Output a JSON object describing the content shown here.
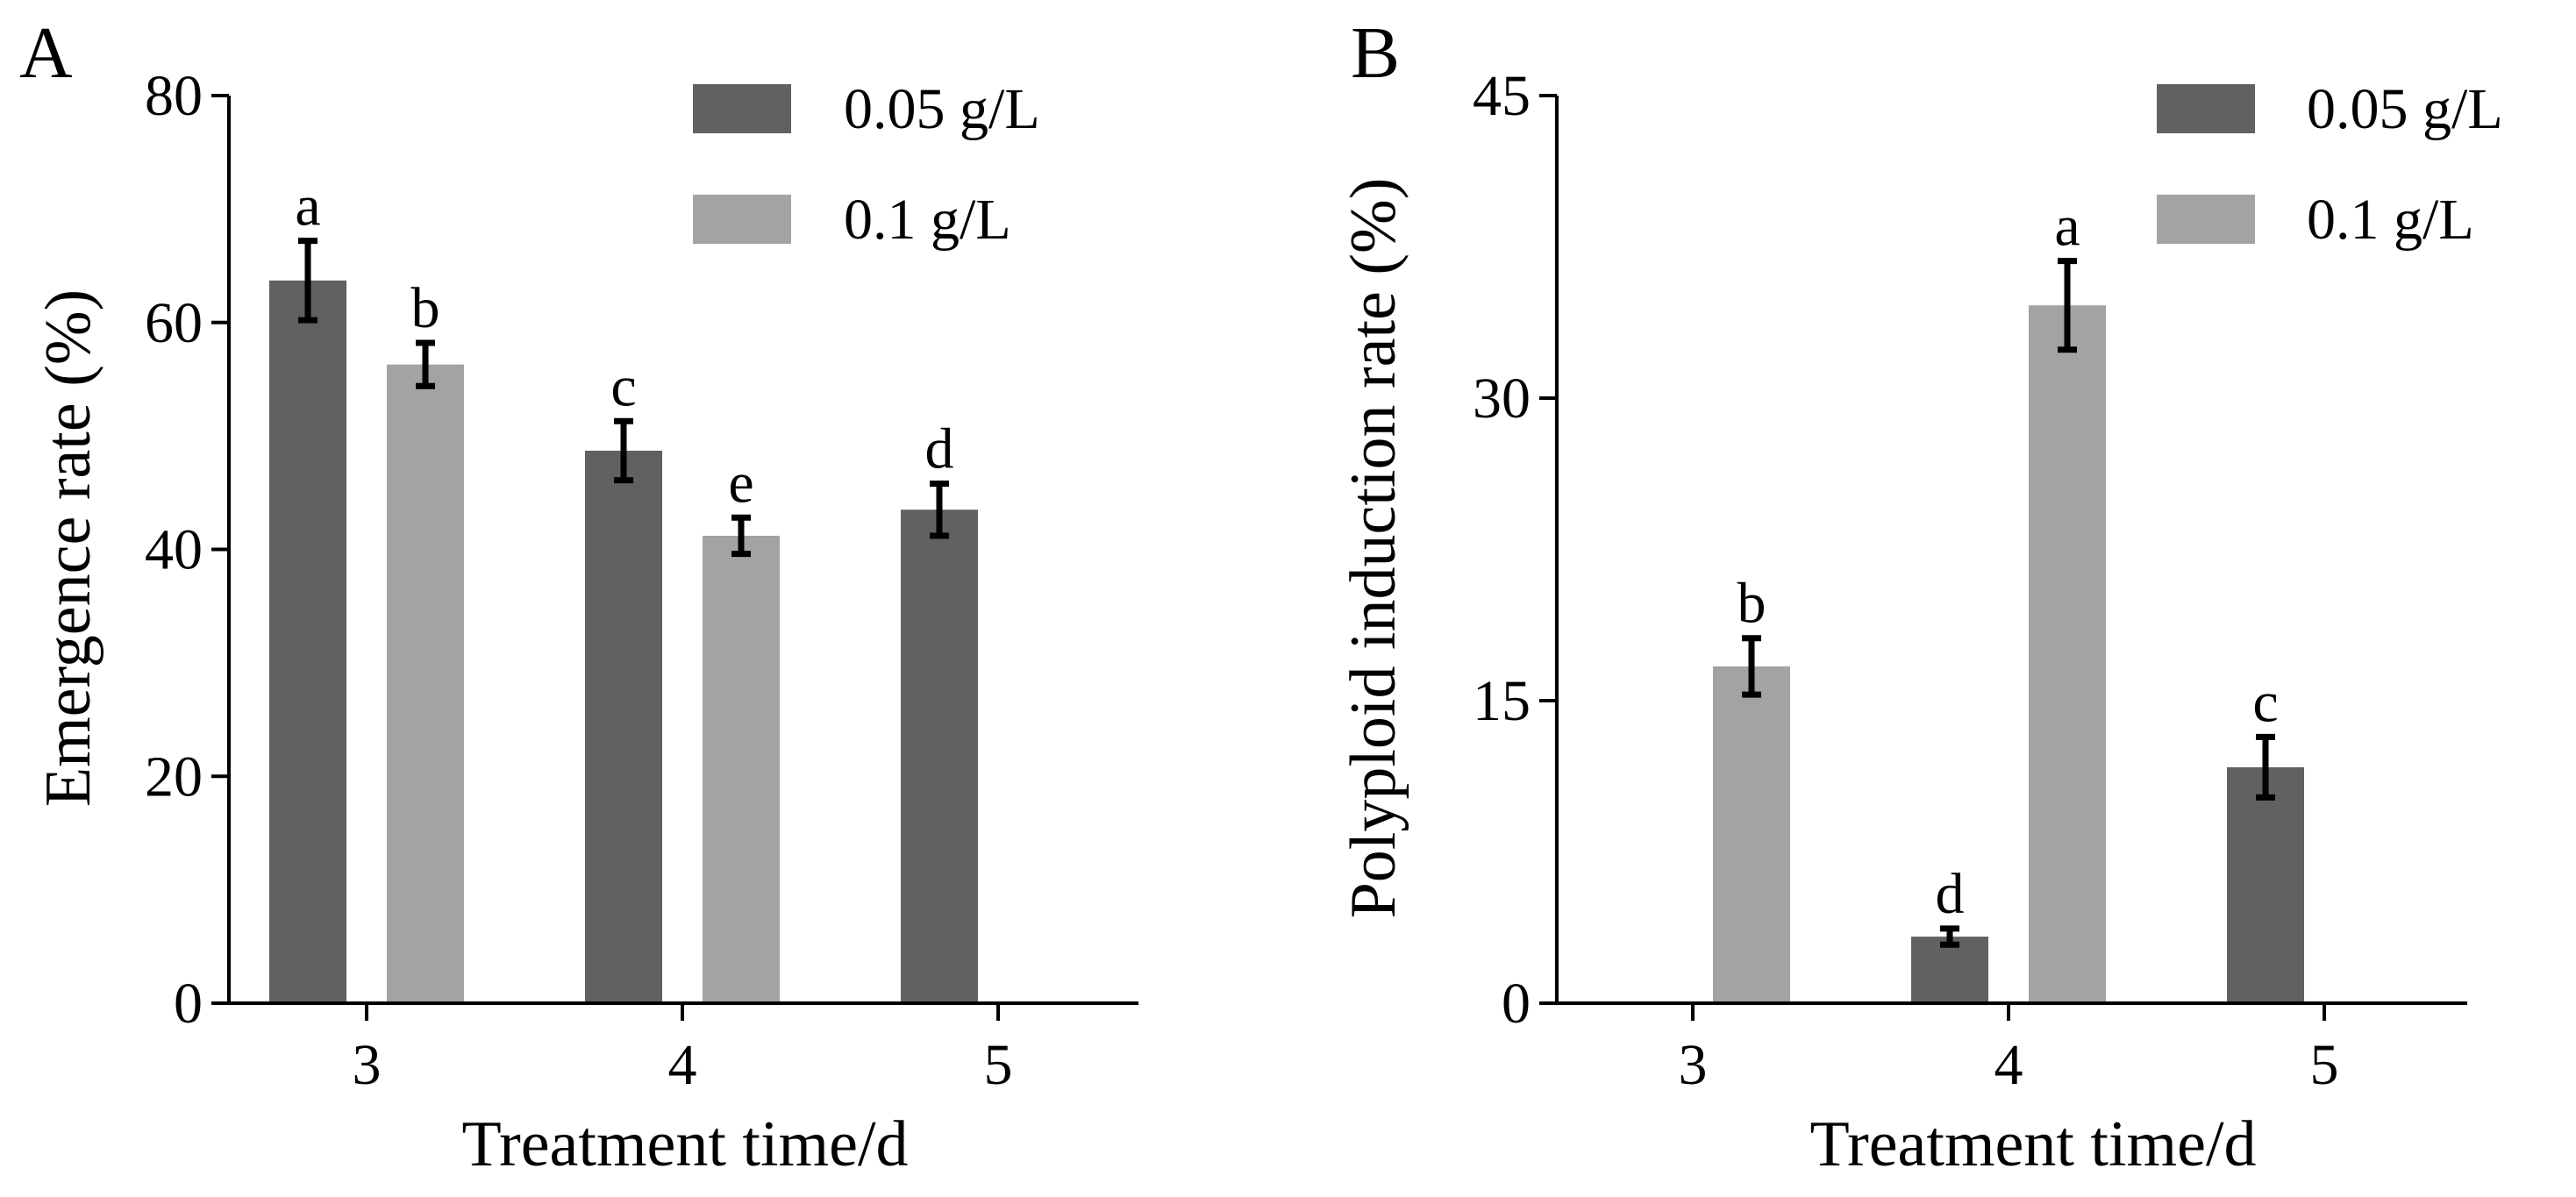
{
  "colors": {
    "dark": "#616161",
    "light": "#a3a3a6",
    "axis": "#000000"
  },
  "legend_entries": [
    {
      "label": "0.05 g/L",
      "color": "#616161"
    },
    {
      "label": "0.1 g/L",
      "color": "#a3a3a6"
    }
  ],
  "chart_data": [
    {
      "type": "bar",
      "panel": "A",
      "xlabel": "Treatment time/d",
      "ylabel": "Emergence rate (%)",
      "categories": [
        "3",
        "4",
        "5"
      ],
      "ylim": [
        0,
        80
      ],
      "yticks": [
        0,
        20,
        40,
        60,
        80
      ],
      "legend": "top-right",
      "grid": false,
      "series": [
        {
          "name": "0.05 g/L",
          "values": [
            63.7,
            48.7,
            43.5
          ],
          "errors": [
            3.5,
            2.6,
            2.3
          ],
          "labels": [
            "a",
            "c",
            "d"
          ]
        },
        {
          "name": "0.1 g/L",
          "values": [
            56.3,
            41.2,
            null
          ],
          "errors": [
            1.9,
            1.6,
            null
          ],
          "labels": [
            "b",
            "e",
            null
          ]
        }
      ]
    },
    {
      "type": "bar",
      "panel": "B",
      "xlabel": "Treatment time/d",
      "ylabel": "Polyploid induction rate (%)",
      "categories": [
        "3",
        "4",
        "5"
      ],
      "ylim": [
        0,
        45
      ],
      "yticks": [
        0,
        15,
        30,
        45
      ],
      "legend": "top-right",
      "grid": false,
      "series": [
        {
          "name": "0.05 g/L",
          "values": [
            null,
            3.3,
            11.7
          ],
          "errors": [
            null,
            0.4,
            1.5
          ],
          "labels": [
            null,
            "d",
            "c"
          ]
        },
        {
          "name": "0.1 g/L",
          "values": [
            16.7,
            34.6,
            null
          ],
          "errors": [
            1.4,
            2.2,
            null
          ],
          "labels": [
            "b",
            "a",
            null
          ]
        }
      ]
    }
  ]
}
